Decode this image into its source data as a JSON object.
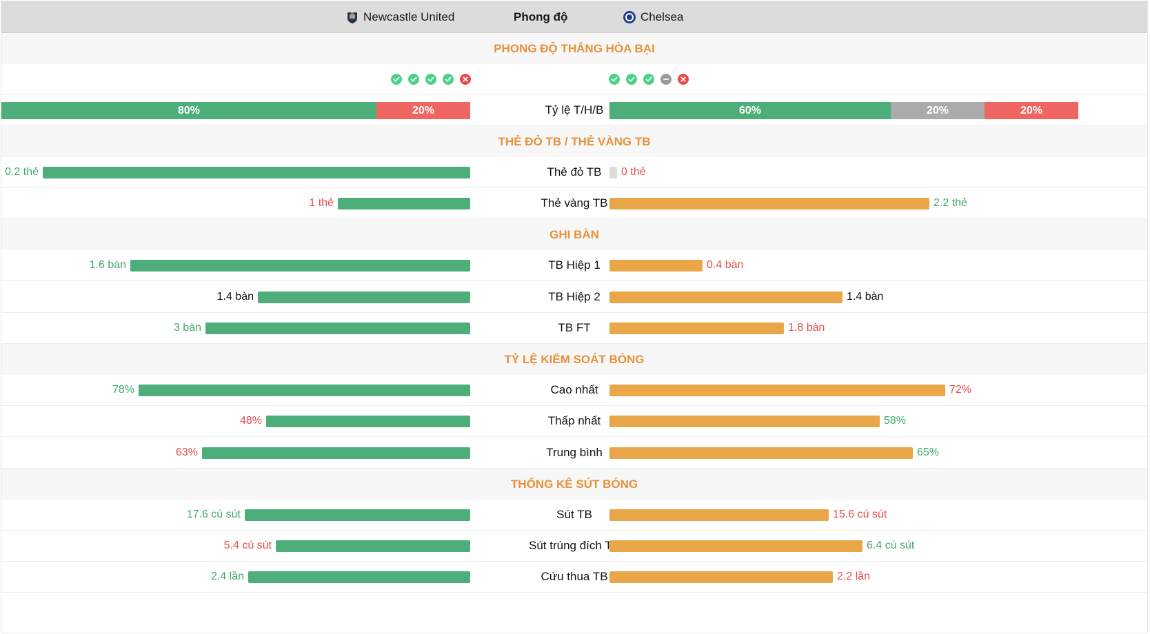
{
  "header": {
    "home_team": "Newcastle United",
    "middle": "Phong độ",
    "away_team": "Chelsea"
  },
  "sections": {
    "form": "PHONG ĐỘ THẮNG HÒA BẠI",
    "cards": "THẺ ĐỎ TB / THẺ VÀNG TB",
    "goals": "GHI BÀN",
    "possession": "TỶ LỆ KIỂM SOÁT BÓNG",
    "shots": "THỐNG KÊ SÚT BÓNG"
  },
  "form": {
    "home": [
      "win",
      "win",
      "win",
      "win",
      "loss"
    ],
    "away": [
      "win",
      "win",
      "win",
      "draw",
      "loss"
    ]
  },
  "ratio": {
    "label": "Tỷ lệ T/H/B",
    "home": [
      {
        "text": "80%",
        "fraction": 0.8,
        "color": "#4eae7a"
      },
      {
        "text": "20%",
        "fraction": 0.2,
        "color": "#ef6562"
      }
    ],
    "away": [
      {
        "text": "60%",
        "fraction": 0.6,
        "color": "#4eae7a"
      },
      {
        "text": "20%",
        "fraction": 0.2,
        "color": "#ababab"
      },
      {
        "text": "20%",
        "fraction": 0.2,
        "color": "#ef6562"
      }
    ]
  },
  "rows": [
    {
      "label": "Thẻ đỏ TB",
      "home_text": "0.2 thẻ",
      "home_frac": 1.0,
      "home_color": "green",
      "away_text": "0 thẻ",
      "away_frac": 0.0,
      "away_color": "red"
    },
    {
      "label": "Thẻ vàng TB",
      "home_text": "1 thẻ",
      "home_frac": 0.31,
      "home_color": "red",
      "away_text": "2.2 thẻ",
      "away_frac": 0.683,
      "away_color": "green"
    },
    {
      "label": "TB Hiệp 1",
      "home_text": "1.6 bàn",
      "home_frac": 0.795,
      "home_color": "green",
      "away_text": "0.4 bàn",
      "away_frac": 0.198,
      "away_color": "red"
    },
    {
      "label": "TB Hiệp 2",
      "home_text": "1.4 bàn",
      "home_frac": 0.497,
      "home_color": "black",
      "away_text": "1.4 bàn",
      "away_frac": 0.497,
      "away_color": "black"
    },
    {
      "label": "TB FT",
      "home_text": "3 bàn",
      "home_frac": 0.62,
      "home_color": "green",
      "away_text": "1.8 bàn",
      "away_frac": 0.372,
      "away_color": "red"
    },
    {
      "label": "Cao nhất",
      "home_text": "78%",
      "home_frac": 0.776,
      "home_color": "green",
      "away_text": "72%",
      "away_frac": 0.716,
      "away_color": "red"
    },
    {
      "label": "Thấp nhất",
      "home_text": "48%",
      "home_frac": 0.478,
      "home_color": "red",
      "away_text": "58%",
      "away_frac": 0.577,
      "away_color": "green"
    },
    {
      "label": "Trung bình",
      "home_text": "63%",
      "home_frac": 0.627,
      "home_color": "red",
      "away_text": "65%",
      "away_frac": 0.647,
      "away_color": "green"
    },
    {
      "label": "Sút TB",
      "home_text": "17.6 cú sút",
      "home_frac": 0.527,
      "home_color": "green",
      "away_text": "15.6 cú sút",
      "away_frac": 0.467,
      "away_color": "red"
    },
    {
      "label": "Sút trúng đích TB",
      "home_text": "5.4 cú sút",
      "home_frac": 0.455,
      "home_color": "red",
      "away_text": "6.4 cú sút",
      "away_frac": 0.539,
      "away_color": "green"
    },
    {
      "label": "Cứu thua TB",
      "home_text": "2.4 lần",
      "home_frac": 0.519,
      "home_color": "green",
      "away_text": "2.2 lần",
      "away_frac": 0.476,
      "away_color": "red"
    }
  ],
  "colors": {
    "home_bar": "#4eae7a",
    "away_bar": "#e9a74a",
    "section_title": "#e8913a",
    "value_green": "#3da86b",
    "value_red": "#e84a4a",
    "win": "#4cd18a",
    "draw": "#9a9a9a",
    "loss": "#ec4a4a"
  },
  "icons": {
    "home_logo": "newcastle-crest-icon",
    "away_logo": "chelsea-crest-icon"
  }
}
